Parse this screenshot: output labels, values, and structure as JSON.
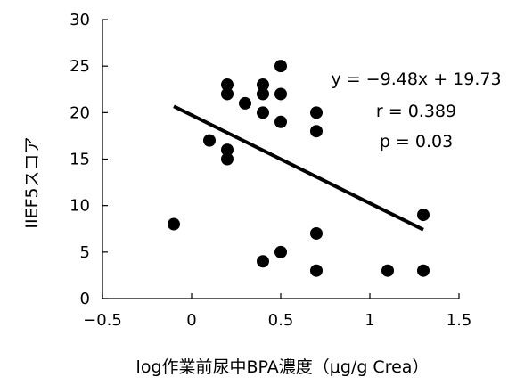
{
  "chart_data": {
    "type": "scatter",
    "title": "",
    "xlabel": "log作業前尿中BPA濃度（μg/g Crea）",
    "ylabel": "IIEF5スコア",
    "xlim": [
      -0.5,
      1.5
    ],
    "ylim": [
      0,
      30
    ],
    "xticks": [
      -0.5,
      0,
      0.5,
      1,
      1.5
    ],
    "yticks": [
      0,
      5,
      10,
      15,
      20,
      25,
      30
    ],
    "xtick_labels": [
      "−0.5",
      "0",
      "0.5",
      "1",
      "1.5"
    ],
    "ytick_labels": [
      "0",
      "5",
      "10",
      "15",
      "20",
      "25",
      "30"
    ],
    "grid": false,
    "legend": false,
    "points": [
      {
        "x": -0.1,
        "y": 8
      },
      {
        "x": 0.1,
        "y": 17
      },
      {
        "x": 0.2,
        "y": 23
      },
      {
        "x": 0.2,
        "y": 22
      },
      {
        "x": 0.2,
        "y": 16
      },
      {
        "x": 0.2,
        "y": 15
      },
      {
        "x": 0.3,
        "y": 21
      },
      {
        "x": 0.4,
        "y": 23
      },
      {
        "x": 0.4,
        "y": 22
      },
      {
        "x": 0.4,
        "y": 20
      },
      {
        "x": 0.4,
        "y": 4
      },
      {
        "x": 0.5,
        "y": 25
      },
      {
        "x": 0.5,
        "y": 22
      },
      {
        "x": 0.5,
        "y": 19
      },
      {
        "x": 0.5,
        "y": 5
      },
      {
        "x": 0.7,
        "y": 20
      },
      {
        "x": 0.7,
        "y": 18
      },
      {
        "x": 0.7,
        "y": 7
      },
      {
        "x": 0.7,
        "y": 3
      },
      {
        "x": 1.1,
        "y": 3
      },
      {
        "x": 1.3,
        "y": 9
      },
      {
        "x": 1.3,
        "y": 3
      }
    ],
    "trendline": {
      "slope": -9.48,
      "intercept": 19.73,
      "x_range": [
        -0.1,
        1.3
      ]
    },
    "annotations": [
      "y = −9.48x + 19.73",
      "r = 0.389",
      "p = 0.03"
    ]
  }
}
